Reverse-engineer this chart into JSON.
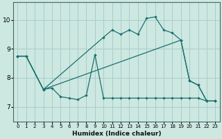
{
  "xlabel": "Humidex (Indice chaleur)",
  "bg_color": "#cce8e0",
  "grid_color": "#aacccc",
  "line_color": "#1a7070",
  "xlim_min": -0.5,
  "xlim_max": 23.5,
  "ylim_min": 6.5,
  "ylim_max": 10.6,
  "yticks": [
    7,
    8,
    9,
    10
  ],
  "xticks": [
    0,
    1,
    2,
    3,
    4,
    5,
    6,
    7,
    8,
    9,
    10,
    11,
    12,
    13,
    14,
    15,
    16,
    17,
    18,
    19,
    20,
    21,
    22,
    23
  ],
  "line_upper_x": [
    0,
    1,
    3,
    10,
    11,
    12,
    13,
    14,
    15,
    16,
    17,
    18,
    19,
    20,
    21,
    22,
    23
  ],
  "line_upper_y": [
    8.75,
    8.75,
    7.6,
    9.4,
    9.65,
    9.5,
    9.65,
    9.5,
    10.05,
    10.1,
    9.65,
    9.55,
    9.3,
    7.9,
    7.75,
    7.2,
    7.2
  ],
  "line_diag_x": [
    0,
    1,
    3,
    19,
    20,
    21,
    22,
    23
  ],
  "line_diag_y": [
    8.75,
    8.75,
    7.6,
    9.3,
    7.9,
    7.75,
    7.2,
    7.2
  ],
  "line_lower_x": [
    0,
    1,
    3,
    4,
    5,
    6,
    7,
    8,
    9,
    10,
    11,
    12,
    13,
    14,
    15,
    16,
    17,
    18,
    19,
    20,
    21,
    22,
    23
  ],
  "line_lower_y": [
    8.75,
    8.75,
    7.6,
    7.65,
    7.35,
    7.3,
    7.25,
    7.4,
    8.8,
    7.3,
    7.3,
    7.3,
    7.3,
    7.3,
    7.3,
    7.3,
    7.3,
    7.3,
    7.3,
    7.3,
    7.3,
    7.2,
    7.2
  ]
}
